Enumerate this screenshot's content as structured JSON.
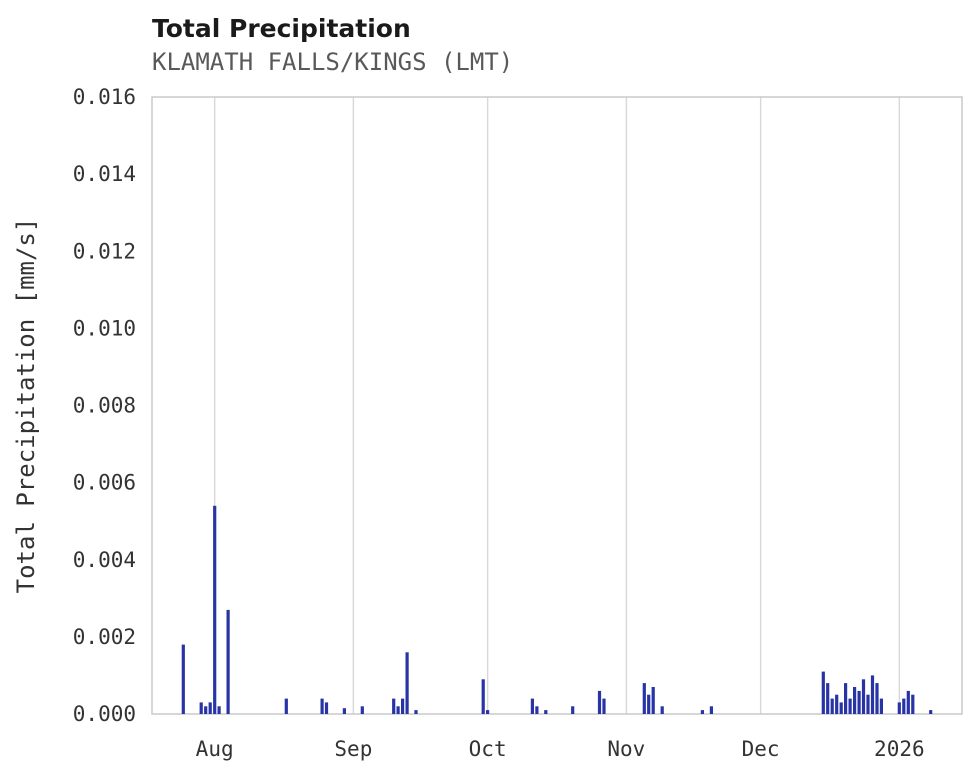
{
  "title": "Total Precipitation",
  "subtitle": "KLAMATH FALLS/KINGS (LMT)",
  "colors": {
    "bar": "#2834a6",
    "grid": "#d8d8d8",
    "spine": "#c6c6c6",
    "tick_text": "#333333",
    "title_text": "#1a1a1a",
    "subtitle_text": "#595959",
    "background": "#ffffff"
  },
  "chart_data": {
    "type": "bar",
    "title": "Total Precipitation",
    "subtitle": "KLAMATH FALLS/KINGS (LMT)",
    "xlabel": "",
    "ylabel": "Total Precipitation [mm/s]",
    "ylim": [
      0,
      0.016
    ],
    "x_domain": [
      "2025-07-18",
      "2026-01-15"
    ],
    "grid": "vertical-only",
    "legend": "none",
    "y_ticks": [
      0,
      0.002,
      0.004,
      0.006,
      0.008,
      0.01,
      0.012,
      0.014,
      0.016
    ],
    "y_tick_labels": [
      "0.000",
      "0.002",
      "0.004",
      "0.006",
      "0.008",
      "0.010",
      "0.012",
      "0.014",
      "0.016"
    ],
    "x_ticks": [
      {
        "label": "Aug",
        "date": "2025-08-01"
      },
      {
        "label": "Sep",
        "date": "2025-09-01"
      },
      {
        "label": "Oct",
        "date": "2025-10-01"
      },
      {
        "label": "Nov",
        "date": "2025-11-01"
      },
      {
        "label": "Dec",
        "date": "2025-12-01"
      },
      {
        "label": "2026",
        "date": "2026-01-01"
      }
    ],
    "points": [
      {
        "date": "2025-07-25",
        "value": 0.0018
      },
      {
        "date": "2025-07-29",
        "value": 0.0003
      },
      {
        "date": "2025-07-30",
        "value": 0.0002
      },
      {
        "date": "2025-07-31",
        "value": 0.0003
      },
      {
        "date": "2025-08-01",
        "value": 0.0054
      },
      {
        "date": "2025-08-02",
        "value": 0.0002
      },
      {
        "date": "2025-08-04",
        "value": 0.0027
      },
      {
        "date": "2025-08-17",
        "value": 0.0004
      },
      {
        "date": "2025-08-25",
        "value": 0.0004
      },
      {
        "date": "2025-08-26",
        "value": 0.0003
      },
      {
        "date": "2025-08-30",
        "value": 0.00015
      },
      {
        "date": "2025-09-03",
        "value": 0.0002
      },
      {
        "date": "2025-09-10",
        "value": 0.0004
      },
      {
        "date": "2025-09-11",
        "value": 0.0002
      },
      {
        "date": "2025-09-12",
        "value": 0.0004
      },
      {
        "date": "2025-09-13",
        "value": 0.0016
      },
      {
        "date": "2025-09-15",
        "value": 0.0001
      },
      {
        "date": "2025-09-30",
        "value": 0.0009
      },
      {
        "date": "2025-10-01",
        "value": 0.0001
      },
      {
        "date": "2025-10-11",
        "value": 0.0004
      },
      {
        "date": "2025-10-12",
        "value": 0.0002
      },
      {
        "date": "2025-10-14",
        "value": 0.0001
      },
      {
        "date": "2025-10-20",
        "value": 0.0002
      },
      {
        "date": "2025-10-26",
        "value": 0.0006
      },
      {
        "date": "2025-10-27",
        "value": 0.0004
      },
      {
        "date": "2025-11-05",
        "value": 0.0008
      },
      {
        "date": "2025-11-06",
        "value": 0.0005
      },
      {
        "date": "2025-11-07",
        "value": 0.0007
      },
      {
        "date": "2025-11-09",
        "value": 0.0002
      },
      {
        "date": "2025-11-18",
        "value": 0.0001
      },
      {
        "date": "2025-11-20",
        "value": 0.0002
      },
      {
        "date": "2025-12-15",
        "value": 0.0011
      },
      {
        "date": "2025-12-16",
        "value": 0.0008
      },
      {
        "date": "2025-12-17",
        "value": 0.0004
      },
      {
        "date": "2025-12-18",
        "value": 0.0005
      },
      {
        "date": "2025-12-19",
        "value": 0.0003
      },
      {
        "date": "2025-12-20",
        "value": 0.0008
      },
      {
        "date": "2025-12-21",
        "value": 0.0004
      },
      {
        "date": "2025-12-22",
        "value": 0.0007
      },
      {
        "date": "2025-12-23",
        "value": 0.0006
      },
      {
        "date": "2025-12-24",
        "value": 0.0009
      },
      {
        "date": "2025-12-25",
        "value": 0.0005
      },
      {
        "date": "2025-12-26",
        "value": 0.001
      },
      {
        "date": "2025-12-27",
        "value": 0.0008
      },
      {
        "date": "2025-12-28",
        "value": 0.0004
      },
      {
        "date": "2026-01-01",
        "value": 0.0003
      },
      {
        "date": "2026-01-02",
        "value": 0.0004
      },
      {
        "date": "2026-01-03",
        "value": 0.0006
      },
      {
        "date": "2026-01-04",
        "value": 0.0005
      },
      {
        "date": "2026-01-08",
        "value": 0.0001
      }
    ]
  }
}
